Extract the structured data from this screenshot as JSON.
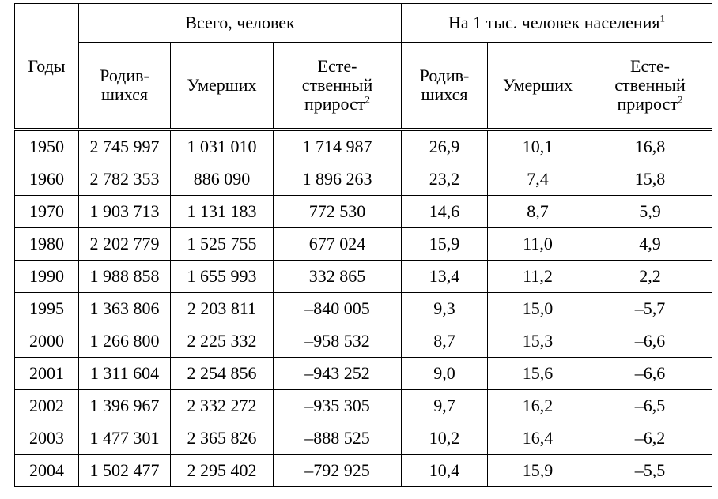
{
  "table": {
    "header": {
      "years": "Годы",
      "group_total": "Всего, человек",
      "group_per_thousand": "На 1 тыс. человек населения",
      "group_per_thousand_note": "1",
      "cols": [
        {
          "label": "Родив-шихся",
          "lines": [
            "Родив-",
            "шихся"
          ]
        },
        {
          "label": "Умерших",
          "lines": [
            "Умерших"
          ]
        },
        {
          "label": "Есте-ственный прирост",
          "lines": [
            "Есте-",
            "ственный",
            "прирост"
          ],
          "note": "2"
        },
        {
          "label": "Родив-шихся",
          "lines": [
            "Родив-",
            "шихся"
          ]
        },
        {
          "label": "Умерших",
          "lines": [
            "Умерших"
          ]
        },
        {
          "label": "Есте-ственный прирост",
          "lines": [
            "Есте-",
            "ственный",
            "прирост"
          ],
          "note": "2"
        }
      ]
    },
    "rows": [
      [
        "1950",
        "2 745 997",
        "1 031 010",
        "1 714 987",
        "26,9",
        "10,1",
        "16,8"
      ],
      [
        "1960",
        "2 782 353",
        "886 090",
        "1 896 263",
        "23,2",
        "7,4",
        "15,8"
      ],
      [
        "1970",
        "1 903 713",
        "1 131 183",
        "772 530",
        "14,6",
        "8,7",
        "5,9"
      ],
      [
        "1980",
        "2 202 779",
        "1 525 755",
        "677 024",
        "15,9",
        "11,0",
        "4,9"
      ],
      [
        "1990",
        "1 988 858",
        "1 655 993",
        "332 865",
        "13,4",
        "11,2",
        "2,2"
      ],
      [
        "1995",
        "1 363 806",
        "2 203 811",
        "–840 005",
        "9,3",
        "15,0",
        "–5,7"
      ],
      [
        "2000",
        "1 266 800",
        "2 225 332",
        "–958 532",
        "8,7",
        "15,3",
        "–6,6"
      ],
      [
        "2001",
        "1 311 604",
        "2 254 856",
        "–943 252",
        "9,0",
        "15,6",
        "–6,6"
      ],
      [
        "2002",
        "1 396 967",
        "2 332 272",
        "–935 305",
        "9,7",
        "16,2",
        "–6,5"
      ],
      [
        "2003",
        "1 477 301",
        "2 365 826",
        "–888 525",
        "10,2",
        "16,4",
        "–6,2"
      ],
      [
        "2004",
        "1 502 477",
        "2 295 402",
        "–792 925",
        "10,4",
        "15,9",
        "–5,5"
      ]
    ]
  }
}
